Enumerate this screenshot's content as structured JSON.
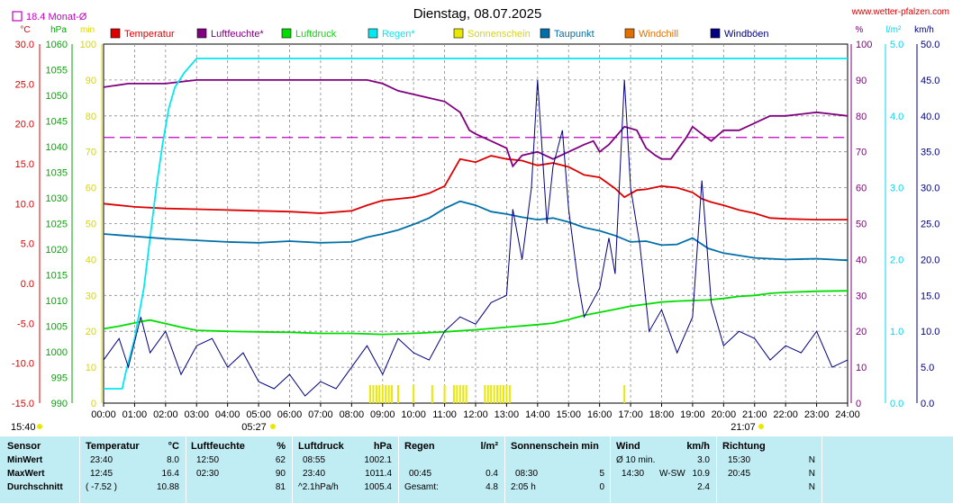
{
  "header": {
    "title": "Dienstag, 08.07.2025",
    "website": "www.wetter-pfalzen.com",
    "monthly_avg": "18.4 Monat-Ø"
  },
  "legend": [
    {
      "label": "Temperatur",
      "color": "#dd0000"
    },
    {
      "label": "Luftfeuchte*",
      "color": "#800080"
    },
    {
      "label": "Luftdruck",
      "color": "#00dd00"
    },
    {
      "label": "Regen*",
      "color": "#00e8f0"
    },
    {
      "label": "Sonnenschein",
      "color": "#e8e800"
    },
    {
      "label": "Taupunkt",
      "color": "#0070a8"
    },
    {
      "label": "Windchill",
      "color": "#e07000"
    },
    {
      "label": "Windböen",
      "color": "#000080"
    }
  ],
  "chart_data": {
    "type": "line",
    "x": [
      "00:00",
      "01:00",
      "02:00",
      "03:00",
      "04:00",
      "05:00",
      "06:00",
      "07:00",
      "08:00",
      "09:00",
      "10:00",
      "11:00",
      "12:00",
      "13:00",
      "14:00",
      "15:00",
      "16:00",
      "17:00",
      "18:00",
      "19:00",
      "20:00",
      "21:00",
      "22:00",
      "23:00",
      "24:00"
    ],
    "axes": {
      "temp": {
        "unit": "°C",
        "ticks": [
          "30.0",
          "25.0",
          "20.0",
          "15.0",
          "10.0",
          "5.0",
          "0.0",
          "-5.0",
          "-10.0",
          "-15.0"
        ],
        "range": [
          -15,
          30
        ]
      },
      "pressure": {
        "unit": "hPa",
        "ticks": [
          "1060",
          "1055",
          "1050",
          "1045",
          "1040",
          "1035",
          "1030",
          "1025",
          "1020",
          "1015",
          "1010",
          "1005",
          "1000",
          "995",
          "990"
        ],
        "range": [
          990,
          1060
        ]
      },
      "sun": {
        "unit": "min",
        "ticks": [
          "100",
          "90",
          "80",
          "70",
          "60",
          "50",
          "40",
          "30",
          "20",
          "10",
          "0"
        ],
        "range": [
          0,
          100
        ]
      },
      "humidity": {
        "unit": "%",
        "ticks": [
          "100",
          "90",
          "80",
          "70",
          "60",
          "50",
          "40",
          "30",
          "20",
          "10",
          "0"
        ],
        "range": [
          0,
          100
        ]
      },
      "rain": {
        "unit": "l/m²",
        "ticks": [
          "5.0",
          "4.0",
          "3.0",
          "2.0",
          "1.0",
          "0.0"
        ],
        "range": [
          0,
          5
        ]
      },
      "wind": {
        "unit": "km/h",
        "ticks": [
          "50.0",
          "45.0",
          "40.0",
          "35.0",
          "30.0",
          "25.0",
          "20.0",
          "15.0",
          "10.0",
          "5.0",
          "0.0"
        ],
        "range": [
          0,
          50
        ]
      }
    },
    "month_avg_humidity": 74,
    "series": [
      {
        "name": "Temperatur",
        "axis": "temp",
        "color": "#dd0000",
        "points": [
          [
            0,
            10.0
          ],
          [
            1,
            9.6
          ],
          [
            2,
            9.4
          ],
          [
            3,
            9.3
          ],
          [
            4,
            9.2
          ],
          [
            5,
            9.1
          ],
          [
            6,
            9.0
          ],
          [
            7,
            8.8
          ],
          [
            8,
            9.1
          ],
          [
            8.5,
            9.8
          ],
          [
            9,
            10.4
          ],
          [
            9.5,
            10.6
          ],
          [
            10,
            10.8
          ],
          [
            10.5,
            11.3
          ],
          [
            11,
            12.2
          ],
          [
            11.5,
            15.6
          ],
          [
            12,
            15.2
          ],
          [
            12.5,
            16.0
          ],
          [
            13,
            15.6
          ],
          [
            13.5,
            15.4
          ],
          [
            14,
            14.8
          ],
          [
            14.5,
            15.1
          ],
          [
            15,
            14.6
          ],
          [
            15.5,
            13.6
          ],
          [
            16,
            13.3
          ],
          [
            16.5,
            11.9
          ],
          [
            16.8,
            10.8
          ],
          [
            17.2,
            11.7
          ],
          [
            17.5,
            11.8
          ],
          [
            18,
            12.2
          ],
          [
            18.5,
            12.0
          ],
          [
            19,
            11.4
          ],
          [
            19.3,
            10.6
          ],
          [
            19.6,
            10.2
          ],
          [
            20,
            9.8
          ],
          [
            20.5,
            9.2
          ],
          [
            21,
            8.8
          ],
          [
            21.5,
            8.2
          ],
          [
            22,
            8.1
          ],
          [
            23,
            8.0
          ],
          [
            24,
            8.0
          ]
        ]
      },
      {
        "name": "Luftfeuchte*",
        "axis": "humidity",
        "color": "#800080",
        "points": [
          [
            0,
            88
          ],
          [
            0.8,
            89
          ],
          [
            2,
            89
          ],
          [
            3,
            90
          ],
          [
            4,
            90
          ],
          [
            5,
            90
          ],
          [
            6,
            90
          ],
          [
            7,
            90
          ],
          [
            8,
            90
          ],
          [
            8.5,
            90
          ],
          [
            9,
            89
          ],
          [
            9.5,
            87
          ],
          [
            10,
            86
          ],
          [
            10.5,
            85
          ],
          [
            11,
            84
          ],
          [
            11.5,
            81
          ],
          [
            11.8,
            76
          ],
          [
            12,
            75
          ],
          [
            12.5,
            73
          ],
          [
            13,
            71
          ],
          [
            13.2,
            66
          ],
          [
            13.5,
            69
          ],
          [
            14,
            70
          ],
          [
            14.5,
            68
          ],
          [
            15,
            70
          ],
          [
            15.5,
            72
          ],
          [
            15.8,
            73
          ],
          [
            16,
            70
          ],
          [
            16.3,
            72
          ],
          [
            16.8,
            77
          ],
          [
            17.2,
            76
          ],
          [
            17.5,
            71
          ],
          [
            17.8,
            69
          ],
          [
            18,
            68
          ],
          [
            18.3,
            68
          ],
          [
            18.8,
            74
          ],
          [
            19,
            77
          ],
          [
            19.3,
            75
          ],
          [
            19.6,
            73
          ],
          [
            20,
            76
          ],
          [
            20.5,
            76
          ],
          [
            21,
            78
          ],
          [
            21.5,
            80
          ],
          [
            22,
            80
          ],
          [
            23,
            81
          ],
          [
            24,
            80
          ]
        ]
      },
      {
        "name": "Luftdruck",
        "axis": "pressure",
        "color": "#00dd00",
        "points": [
          [
            0,
            1004.5
          ],
          [
            0.5,
            1005.0
          ],
          [
            1.3,
            1006.0
          ],
          [
            1.5,
            1006.2
          ],
          [
            2,
            1005.5
          ],
          [
            2.5,
            1004.8
          ],
          [
            3,
            1004.2
          ],
          [
            4,
            1004.0
          ],
          [
            5,
            1003.9
          ],
          [
            6,
            1003.8
          ],
          [
            7,
            1003.6
          ],
          [
            8,
            1003.6
          ],
          [
            9,
            1003.4
          ],
          [
            10,
            1003.6
          ],
          [
            11,
            1003.9
          ],
          [
            12,
            1004.3
          ],
          [
            13,
            1004.8
          ],
          [
            14,
            1005.3
          ],
          [
            14.5,
            1005.6
          ],
          [
            15,
            1006.3
          ],
          [
            15.5,
            1007.1
          ],
          [
            16,
            1007.7
          ],
          [
            16.5,
            1008.3
          ],
          [
            17,
            1008.9
          ],
          [
            17.5,
            1009.3
          ],
          [
            18,
            1009.7
          ],
          [
            18.5,
            1009.9
          ],
          [
            19,
            1010.0
          ],
          [
            19.5,
            1010.1
          ],
          [
            20,
            1010.4
          ],
          [
            20.5,
            1010.8
          ],
          [
            21,
            1011.0
          ],
          [
            21.5,
            1011.4
          ],
          [
            22,
            1011.6
          ],
          [
            22.5,
            1011.7
          ],
          [
            23,
            1011.8
          ],
          [
            24,
            1011.9
          ]
        ]
      },
      {
        "name": "Regen*",
        "axis": "rain",
        "color": "#00e8f0",
        "points": [
          [
            0,
            0.2
          ],
          [
            0.6,
            0.2
          ],
          [
            0.7,
            0.4
          ],
          [
            1.0,
            0.9
          ],
          [
            1.3,
            1.6
          ],
          [
            1.5,
            2.3
          ],
          [
            1.7,
            3.0
          ],
          [
            1.9,
            3.6
          ],
          [
            2.1,
            4.1
          ],
          [
            2.3,
            4.4
          ],
          [
            2.6,
            4.6
          ],
          [
            3,
            4.8
          ],
          [
            4,
            4.8
          ],
          [
            6,
            4.8
          ],
          [
            24,
            4.8
          ]
        ]
      },
      {
        "name": "Taupunkt",
        "axis": "temp",
        "color": "#0070a8",
        "points": [
          [
            0,
            6.2
          ],
          [
            1,
            5.9
          ],
          [
            2,
            5.6
          ],
          [
            3,
            5.4
          ],
          [
            4,
            5.2
          ],
          [
            5,
            5.1
          ],
          [
            6,
            5.3
          ],
          [
            7,
            5.1
          ],
          [
            8,
            5.2
          ],
          [
            8.5,
            5.8
          ],
          [
            9,
            6.2
          ],
          [
            9.5,
            6.7
          ],
          [
            10,
            7.4
          ],
          [
            10.5,
            8.2
          ],
          [
            11,
            9.4
          ],
          [
            11.5,
            10.3
          ],
          [
            12,
            9.8
          ],
          [
            12.5,
            9.0
          ],
          [
            13,
            8.7
          ],
          [
            13.5,
            8.3
          ],
          [
            14,
            8.0
          ],
          [
            14.5,
            8.2
          ],
          [
            15,
            7.7
          ],
          [
            15.5,
            7.0
          ],
          [
            16,
            6.6
          ],
          [
            16.5,
            6.0
          ],
          [
            17,
            5.2
          ],
          [
            17.5,
            5.3
          ],
          [
            18,
            4.8
          ],
          [
            18.5,
            4.9
          ],
          [
            19,
            5.7
          ],
          [
            19.5,
            4.4
          ],
          [
            20,
            3.8
          ],
          [
            21,
            3.2
          ],
          [
            22,
            3.0
          ],
          [
            23,
            3.1
          ],
          [
            24,
            2.9
          ]
        ]
      },
      {
        "name": "Windböen",
        "axis": "wind",
        "color": "#000080",
        "points": [
          [
            0,
            6
          ],
          [
            0.5,
            9
          ],
          [
            0.8,
            5
          ],
          [
            1.2,
            12
          ],
          [
            1.5,
            7
          ],
          [
            2.0,
            10
          ],
          [
            2.5,
            4
          ],
          [
            3.0,
            8
          ],
          [
            3.5,
            9
          ],
          [
            4.0,
            5
          ],
          [
            4.5,
            7
          ],
          [
            5.0,
            3
          ],
          [
            5.5,
            2
          ],
          [
            6.0,
            4
          ],
          [
            6.5,
            1
          ],
          [
            7.0,
            3
          ],
          [
            7.5,
            2
          ],
          [
            8.0,
            5
          ],
          [
            8.5,
            8
          ],
          [
            9.0,
            4
          ],
          [
            9.5,
            9
          ],
          [
            10.0,
            7
          ],
          [
            10.5,
            6
          ],
          [
            11.0,
            10
          ],
          [
            11.5,
            12
          ],
          [
            12.0,
            11
          ],
          [
            12.5,
            14
          ],
          [
            13.0,
            15
          ],
          [
            13.2,
            27
          ],
          [
            13.5,
            20
          ],
          [
            13.8,
            30
          ],
          [
            14.0,
            45
          ],
          [
            14.3,
            25
          ],
          [
            14.5,
            33
          ],
          [
            14.8,
            38
          ],
          [
            15.0,
            27
          ],
          [
            15.3,
            17
          ],
          [
            15.5,
            12
          ],
          [
            16.0,
            16
          ],
          [
            16.3,
            23
          ],
          [
            16.5,
            18
          ],
          [
            16.8,
            45
          ],
          [
            17.0,
            30
          ],
          [
            17.3,
            22
          ],
          [
            17.6,
            10
          ],
          [
            18.0,
            13
          ],
          [
            18.5,
            7
          ],
          [
            19.0,
            12
          ],
          [
            19.3,
            31
          ],
          [
            19.6,
            14
          ],
          [
            20.0,
            8
          ],
          [
            20.5,
            10
          ],
          [
            21.0,
            9
          ],
          [
            21.5,
            6
          ],
          [
            22.0,
            8
          ],
          [
            22.5,
            7
          ],
          [
            23.0,
            10
          ],
          [
            23.5,
            5
          ],
          [
            24.0,
            6
          ]
        ]
      }
    ]
  },
  "sun_marks": {
    "sunrise": "05:27",
    "sunset": "21:07",
    "time": "15:40"
  },
  "table": {
    "rows": [
      "Sensor",
      "MinWert",
      "MaxWert",
      "Durchschnitt"
    ],
    "temperatur": {
      "header": "Temperatur",
      "unit": "°C",
      "min_time": "23:40",
      "min": "8.0",
      "max_time": "12:45",
      "max": "16.4",
      "avg_time": "( -7.52 )",
      "avg": "10.88"
    },
    "luftfeuchte": {
      "header": "Luftfeuchte",
      "unit": "%",
      "min_time": "12:50",
      "min": "62",
      "max_time": "02:30",
      "max": "90",
      "avg": "81"
    },
    "luftdruck": {
      "header": "Luftdruck",
      "unit": "hPa",
      "min_time": "08:55",
      "min": "1002.1",
      "max_time": "23:40",
      "max": "1011.4",
      "avg_time": "^2.1hPa/h",
      "avg": "1005.4"
    },
    "regen": {
      "header": "Regen",
      "unit": "l/m²",
      "max_time": "00:45",
      "max": "0.4",
      "avg_time": "Gesamt:",
      "avg": "4.8"
    },
    "sonnenschein": {
      "header": "Sonnenschein min",
      "max_time": "08:30",
      "max": "5",
      "avg_time": "2:05 h",
      "avg": "0"
    },
    "wind": {
      "header": "Wind",
      "unit": "km/h",
      "min_time": "Ø 10 min.",
      "min": "3.0",
      "max_time": "14:30",
      "max_dir": "W-SW",
      "max": "10.9",
      "avg": "2.4"
    },
    "richtung": {
      "header": "Richtung",
      "min_time": "15:30",
      "min": "N",
      "max_time": "20:45",
      "max": "N",
      "avg": "N"
    }
  }
}
